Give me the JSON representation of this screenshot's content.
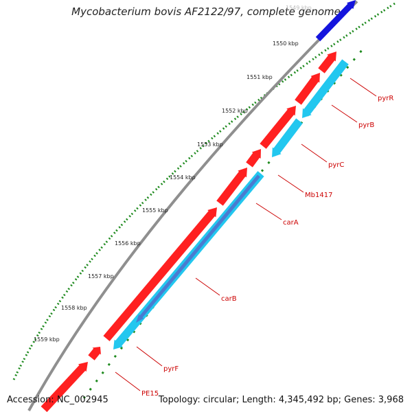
{
  "title": "Mycobacterium bovis AF2122/97, complete genome",
  "footer": {
    "accession": "Accession: NC_002945",
    "summary": "Topology: circular; Length: 4,345,492 bp; Genes: 3,968"
  },
  "colors": {
    "forward_gene": "#ff2020",
    "reverse_gene": "#22c7ef",
    "reverse_gene_overlay": "#4a7bd0",
    "other_gene": "#1414dd",
    "backbone": "#8f8f8f",
    "tick": "#1e8a1e",
    "label_text": "#cc0000"
  },
  "scale_labels": [
    "1549 kbp",
    "1550 kbp",
    "1551 kbp",
    "1552 kbp",
    "1553 kbp",
    "1554 kbp",
    "1555 kbp",
    "1556 kbp",
    "1557 kbp",
    "1558 kbp",
    "1559 kbp"
  ],
  "genes": [
    {
      "name": "pyrR",
      "strand": "reverse"
    },
    {
      "name": "pyrB",
      "strand": "forward"
    },
    {
      "name": "pyrC",
      "strand": "reverse"
    },
    {
      "name": "Mb1417",
      "strand": "forward"
    },
    {
      "name": "carA",
      "strand": "reverse"
    },
    {
      "name": "carB",
      "strand": "forward"
    },
    {
      "name": "pyrF",
      "strand": "reverse"
    },
    {
      "name": "PE15",
      "strand": "forward"
    }
  ]
}
